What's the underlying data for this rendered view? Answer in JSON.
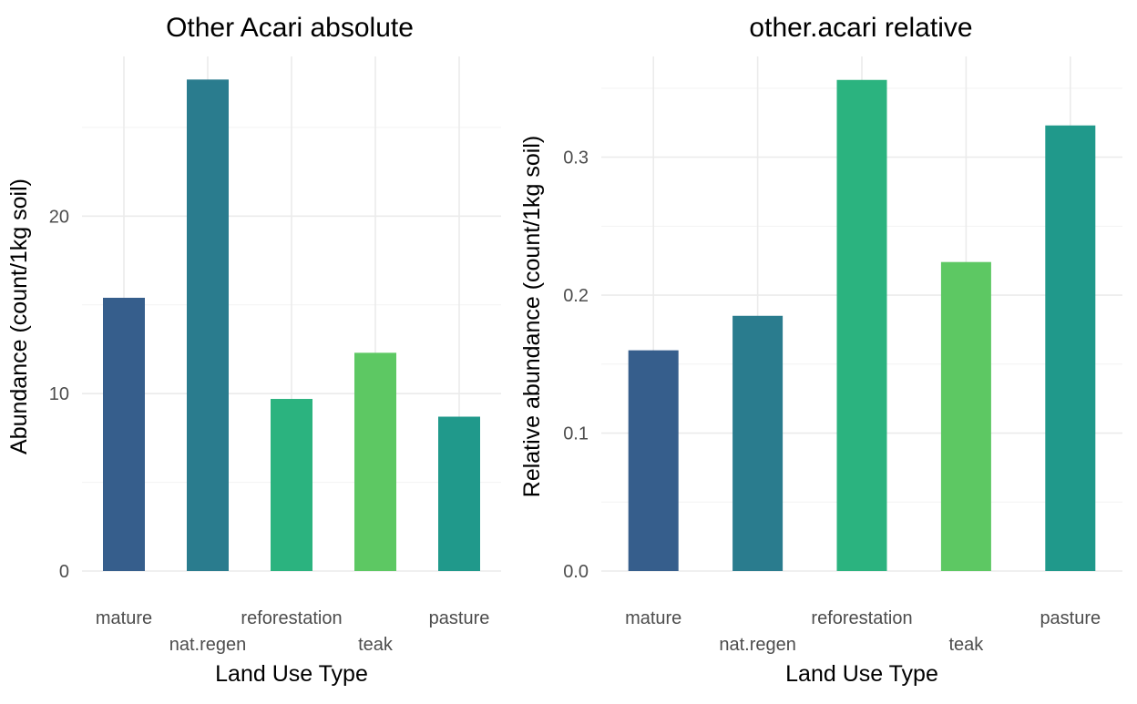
{
  "chart_data": [
    {
      "type": "bar",
      "title": "Other Acari absolute",
      "xlabel": "Land Use Type",
      "ylabel": "Abundance (count/1kg soil)",
      "categories": [
        "mature",
        "nat.regen",
        "reforestation",
        "teak",
        "pasture"
      ],
      "values": [
        15.4,
        27.7,
        9.7,
        12.3,
        8.7
      ],
      "colors": [
        "#365E8C",
        "#2A7C8E",
        "#2BB37F",
        "#5DC863",
        "#20998B"
      ],
      "ylim": [
        0,
        29
      ],
      "yticks": [
        0,
        10,
        20
      ],
      "ytick_labels": [
        "0",
        "10",
        "20"
      ],
      "grid": true,
      "legend": "none"
    },
    {
      "type": "bar",
      "title": "other.acari relative",
      "xlabel": "Land Use Type",
      "ylabel": "Relative abundance (count/1kg soil)",
      "categories": [
        "mature",
        "nat.regen",
        "reforestation",
        "teak",
        "pasture"
      ],
      "values": [
        0.16,
        0.185,
        0.356,
        0.224,
        0.323
      ],
      "colors": [
        "#365E8C",
        "#2A7C8E",
        "#2BB37F",
        "#5DC863",
        "#20998B"
      ],
      "ylim": [
        0,
        0.373
      ],
      "yticks": [
        0,
        0.1,
        0.2,
        0.3
      ],
      "ytick_labels": [
        "0.0",
        "0.1",
        "0.2",
        "0.3"
      ],
      "grid": true,
      "legend": "none"
    }
  ]
}
